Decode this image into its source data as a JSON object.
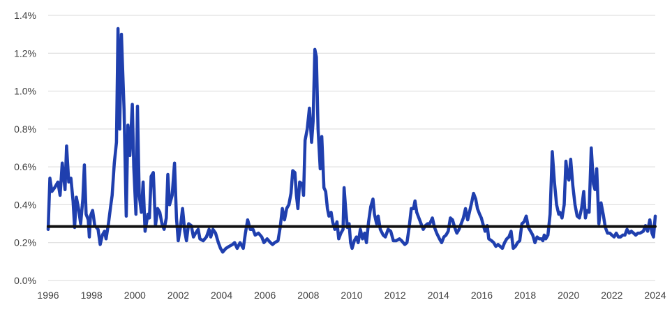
{
  "chart_data": {
    "type": "line",
    "title": "",
    "xlabel": "",
    "ylabel": "",
    "xlim": [
      1996,
      2024
    ],
    "ylim": [
      0,
      1.4
    ],
    "grid": true,
    "legend": "none",
    "x_ticks": [
      {
        "value": 1996,
        "label": "1996"
      },
      {
        "value": 1998,
        "label": "1998"
      },
      {
        "value": 2000,
        "label": "2000"
      },
      {
        "value": 2002,
        "label": "2002"
      },
      {
        "value": 2004,
        "label": "2004"
      },
      {
        "value": 2006,
        "label": "2006"
      },
      {
        "value": 2008,
        "label": "2008"
      },
      {
        "value": 2010,
        "label": "2010"
      },
      {
        "value": 2012,
        "label": "2012"
      },
      {
        "value": 2014,
        "label": "2014"
      },
      {
        "value": 2016,
        "label": "2016"
      },
      {
        "value": 2018,
        "label": "2018"
      },
      {
        "value": 2020,
        "label": "2020"
      },
      {
        "value": 2022,
        "label": "2022"
      },
      {
        "value": 2024,
        "label": "2024"
      }
    ],
    "y_ticks": [
      {
        "value": 0.0,
        "label": "0.0%"
      },
      {
        "value": 0.2,
        "label": "0.2%"
      },
      {
        "value": 0.4,
        "label": "0.4%"
      },
      {
        "value": 0.6,
        "label": "0.6%"
      },
      {
        "value": 0.8,
        "label": "0.8%"
      },
      {
        "value": 1.0,
        "label": "1.0%"
      },
      {
        "value": 1.2,
        "label": "1.2%"
      },
      {
        "value": 1.4,
        "label": "1.4%"
      }
    ],
    "series": [
      {
        "color": "#1f3fae",
        "points": [
          [
            1996.0,
            0.27
          ],
          [
            1996.08,
            0.54
          ],
          [
            1996.17,
            0.47
          ],
          [
            1996.3,
            0.49
          ],
          [
            1996.45,
            0.52
          ],
          [
            1996.55,
            0.45
          ],
          [
            1996.65,
            0.62
          ],
          [
            1996.78,
            0.48
          ],
          [
            1996.85,
            0.71
          ],
          [
            1996.95,
            0.52
          ],
          [
            1997.05,
            0.54
          ],
          [
            1997.15,
            0.42
          ],
          [
            1997.22,
            0.28
          ],
          [
            1997.3,
            0.44
          ],
          [
            1997.4,
            0.38
          ],
          [
            1997.5,
            0.3
          ],
          [
            1997.6,
            0.43
          ],
          [
            1997.67,
            0.61
          ],
          [
            1997.75,
            0.35
          ],
          [
            1997.85,
            0.32
          ],
          [
            1997.9,
            0.23
          ],
          [
            1997.95,
            0.34
          ],
          [
            1998.05,
            0.37
          ],
          [
            1998.15,
            0.29
          ],
          [
            1998.3,
            0.27
          ],
          [
            1998.4,
            0.19
          ],
          [
            1998.5,
            0.24
          ],
          [
            1998.6,
            0.26
          ],
          [
            1998.67,
            0.22
          ],
          [
            1998.78,
            0.3
          ],
          [
            1998.88,
            0.39
          ],
          [
            1998.95,
            0.45
          ],
          [
            1999.05,
            0.62
          ],
          [
            1999.15,
            0.73
          ],
          [
            1999.22,
            1.33
          ],
          [
            1999.3,
            0.8
          ],
          [
            1999.38,
            1.3
          ],
          [
            1999.5,
            0.9
          ],
          [
            1999.6,
            0.34
          ],
          [
            1999.68,
            0.82
          ],
          [
            1999.77,
            0.66
          ],
          [
            1999.88,
            0.93
          ],
          [
            1999.95,
            0.6
          ],
          [
            2000.05,
            0.35
          ],
          [
            2000.12,
            0.92
          ],
          [
            2000.2,
            0.45
          ],
          [
            2000.3,
            0.36
          ],
          [
            2000.38,
            0.52
          ],
          [
            2000.47,
            0.26
          ],
          [
            2000.6,
            0.35
          ],
          [
            2000.67,
            0.33
          ],
          [
            2000.75,
            0.55
          ],
          [
            2000.85,
            0.57
          ],
          [
            2000.95,
            0.29
          ],
          [
            2001.05,
            0.38
          ],
          [
            2001.15,
            0.36
          ],
          [
            2001.25,
            0.3
          ],
          [
            2001.35,
            0.27
          ],
          [
            2001.45,
            0.33
          ],
          [
            2001.52,
            0.56
          ],
          [
            2001.6,
            0.4
          ],
          [
            2001.72,
            0.45
          ],
          [
            2001.83,
            0.62
          ],
          [
            2001.92,
            0.33
          ],
          [
            2002.0,
            0.21
          ],
          [
            2002.1,
            0.28
          ],
          [
            2002.2,
            0.38
          ],
          [
            2002.3,
            0.26
          ],
          [
            2002.38,
            0.21
          ],
          [
            2002.48,
            0.3
          ],
          [
            2002.6,
            0.29
          ],
          [
            2002.7,
            0.23
          ],
          [
            2002.8,
            0.25
          ],
          [
            2002.92,
            0.27
          ],
          [
            2003.0,
            0.22
          ],
          [
            2003.15,
            0.21
          ],
          [
            2003.3,
            0.23
          ],
          [
            2003.42,
            0.27
          ],
          [
            2003.5,
            0.23
          ],
          [
            2003.6,
            0.27
          ],
          [
            2003.72,
            0.25
          ],
          [
            2003.85,
            0.2
          ],
          [
            2003.95,
            0.17
          ],
          [
            2004.05,
            0.15
          ],
          [
            2004.2,
            0.17
          ],
          [
            2004.35,
            0.18
          ],
          [
            2004.5,
            0.19
          ],
          [
            2004.6,
            0.2
          ],
          [
            2004.72,
            0.17
          ],
          [
            2004.85,
            0.2
          ],
          [
            2005.0,
            0.17
          ],
          [
            2005.1,
            0.25
          ],
          [
            2005.2,
            0.32
          ],
          [
            2005.32,
            0.27
          ],
          [
            2005.45,
            0.27
          ],
          [
            2005.55,
            0.24
          ],
          [
            2005.7,
            0.25
          ],
          [
            2005.85,
            0.23
          ],
          [
            2005.95,
            0.2
          ],
          [
            2006.1,
            0.22
          ],
          [
            2006.25,
            0.2
          ],
          [
            2006.35,
            0.19
          ],
          [
            2006.45,
            0.2
          ],
          [
            2006.6,
            0.21
          ],
          [
            2006.7,
            0.28
          ],
          [
            2006.8,
            0.38
          ],
          [
            2006.9,
            0.32
          ],
          [
            2007.0,
            0.38
          ],
          [
            2007.1,
            0.4
          ],
          [
            2007.2,
            0.46
          ],
          [
            2007.28,
            0.58
          ],
          [
            2007.38,
            0.57
          ],
          [
            2007.45,
            0.45
          ],
          [
            2007.52,
            0.38
          ],
          [
            2007.6,
            0.52
          ],
          [
            2007.72,
            0.51
          ],
          [
            2007.78,
            0.45
          ],
          [
            2007.85,
            0.74
          ],
          [
            2007.95,
            0.8
          ],
          [
            2008.05,
            0.91
          ],
          [
            2008.15,
            0.73
          ],
          [
            2008.22,
            0.84
          ],
          [
            2008.3,
            1.22
          ],
          [
            2008.37,
            1.18
          ],
          [
            2008.45,
            0.8
          ],
          [
            2008.55,
            0.59
          ],
          [
            2008.62,
            0.76
          ],
          [
            2008.72,
            0.49
          ],
          [
            2008.8,
            0.47
          ],
          [
            2008.88,
            0.38
          ],
          [
            2008.95,
            0.34
          ],
          [
            2009.05,
            0.36
          ],
          [
            2009.12,
            0.31
          ],
          [
            2009.22,
            0.27
          ],
          [
            2009.32,
            0.31
          ],
          [
            2009.4,
            0.22
          ],
          [
            2009.5,
            0.25
          ],
          [
            2009.6,
            0.27
          ],
          [
            2009.65,
            0.49
          ],
          [
            2009.72,
            0.38
          ],
          [
            2009.8,
            0.28
          ],
          [
            2009.88,
            0.3
          ],
          [
            2009.95,
            0.2
          ],
          [
            2010.02,
            0.17
          ],
          [
            2010.12,
            0.21
          ],
          [
            2010.22,
            0.23
          ],
          [
            2010.3,
            0.2
          ],
          [
            2010.4,
            0.27
          ],
          [
            2010.5,
            0.22
          ],
          [
            2010.6,
            0.25
          ],
          [
            2010.68,
            0.2
          ],
          [
            2010.78,
            0.31
          ],
          [
            2010.88,
            0.39
          ],
          [
            2010.98,
            0.43
          ],
          [
            2011.05,
            0.35
          ],
          [
            2011.15,
            0.3
          ],
          [
            2011.22,
            0.34
          ],
          [
            2011.32,
            0.27
          ],
          [
            2011.45,
            0.24
          ],
          [
            2011.55,
            0.23
          ],
          [
            2011.68,
            0.27
          ],
          [
            2011.8,
            0.26
          ],
          [
            2011.92,
            0.21
          ],
          [
            2012.05,
            0.21
          ],
          [
            2012.2,
            0.22
          ],
          [
            2012.3,
            0.21
          ],
          [
            2012.45,
            0.19
          ],
          [
            2012.55,
            0.2
          ],
          [
            2012.65,
            0.28
          ],
          [
            2012.75,
            0.38
          ],
          [
            2012.85,
            0.38
          ],
          [
            2012.92,
            0.42
          ],
          [
            2013.0,
            0.36
          ],
          [
            2013.1,
            0.33
          ],
          [
            2013.2,
            0.3
          ],
          [
            2013.3,
            0.27
          ],
          [
            2013.4,
            0.29
          ],
          [
            2013.5,
            0.3
          ],
          [
            2013.6,
            0.3
          ],
          [
            2013.72,
            0.33
          ],
          [
            2013.82,
            0.28
          ],
          [
            2013.92,
            0.25
          ],
          [
            2014.05,
            0.22
          ],
          [
            2014.15,
            0.2
          ],
          [
            2014.25,
            0.23
          ],
          [
            2014.35,
            0.24
          ],
          [
            2014.45,
            0.26
          ],
          [
            2014.55,
            0.33
          ],
          [
            2014.65,
            0.32
          ],
          [
            2014.75,
            0.28
          ],
          [
            2014.85,
            0.25
          ],
          [
            2014.95,
            0.27
          ],
          [
            2015.05,
            0.3
          ],
          [
            2015.15,
            0.33
          ],
          [
            2015.25,
            0.38
          ],
          [
            2015.35,
            0.32
          ],
          [
            2015.45,
            0.37
          ],
          [
            2015.55,
            0.42
          ],
          [
            2015.62,
            0.46
          ],
          [
            2015.72,
            0.43
          ],
          [
            2015.8,
            0.38
          ],
          [
            2015.9,
            0.35
          ],
          [
            2015.98,
            0.33
          ],
          [
            2016.05,
            0.3
          ],
          [
            2016.15,
            0.26
          ],
          [
            2016.25,
            0.29
          ],
          [
            2016.32,
            0.22
          ],
          [
            2016.45,
            0.21
          ],
          [
            2016.55,
            0.2
          ],
          [
            2016.65,
            0.18
          ],
          [
            2016.75,
            0.19
          ],
          [
            2016.85,
            0.18
          ],
          [
            2016.95,
            0.17
          ],
          [
            2017.05,
            0.2
          ],
          [
            2017.15,
            0.22
          ],
          [
            2017.25,
            0.23
          ],
          [
            2017.35,
            0.26
          ],
          [
            2017.45,
            0.17
          ],
          [
            2017.55,
            0.18
          ],
          [
            2017.65,
            0.2
          ],
          [
            2017.75,
            0.21
          ],
          [
            2017.85,
            0.3
          ],
          [
            2017.95,
            0.31
          ],
          [
            2018.05,
            0.34
          ],
          [
            2018.15,
            0.28
          ],
          [
            2018.25,
            0.26
          ],
          [
            2018.35,
            0.24
          ],
          [
            2018.45,
            0.2
          ],
          [
            2018.55,
            0.23
          ],
          [
            2018.65,
            0.22
          ],
          [
            2018.75,
            0.22
          ],
          [
            2018.82,
            0.21
          ],
          [
            2018.88,
            0.24
          ],
          [
            2018.95,
            0.22
          ],
          [
            2019.05,
            0.24
          ],
          [
            2019.15,
            0.35
          ],
          [
            2019.25,
            0.68
          ],
          [
            2019.35,
            0.52
          ],
          [
            2019.45,
            0.4
          ],
          [
            2019.55,
            0.35
          ],
          [
            2019.6,
            0.36
          ],
          [
            2019.7,
            0.33
          ],
          [
            2019.8,
            0.4
          ],
          [
            2019.88,
            0.63
          ],
          [
            2019.95,
            0.55
          ],
          [
            2020.02,
            0.53
          ],
          [
            2020.1,
            0.64
          ],
          [
            2020.2,
            0.5
          ],
          [
            2020.3,
            0.4
          ],
          [
            2020.4,
            0.34
          ],
          [
            2020.5,
            0.33
          ],
          [
            2020.6,
            0.38
          ],
          [
            2020.7,
            0.47
          ],
          [
            2020.78,
            0.33
          ],
          [
            2020.85,
            0.37
          ],
          [
            2020.95,
            0.36
          ],
          [
            2021.05,
            0.7
          ],
          [
            2021.15,
            0.51
          ],
          [
            2021.22,
            0.48
          ],
          [
            2021.3,
            0.59
          ],
          [
            2021.4,
            0.3
          ],
          [
            2021.5,
            0.41
          ],
          [
            2021.6,
            0.35
          ],
          [
            2021.7,
            0.28
          ],
          [
            2021.8,
            0.25
          ],
          [
            2021.9,
            0.25
          ],
          [
            2022.0,
            0.24
          ],
          [
            2022.1,
            0.23
          ],
          [
            2022.2,
            0.25
          ],
          [
            2022.3,
            0.23
          ],
          [
            2022.4,
            0.23
          ],
          [
            2022.5,
            0.24
          ],
          [
            2022.6,
            0.24
          ],
          [
            2022.7,
            0.27
          ],
          [
            2022.8,
            0.25
          ],
          [
            2022.9,
            0.26
          ],
          [
            2023.0,
            0.25
          ],
          [
            2023.1,
            0.24
          ],
          [
            2023.2,
            0.25
          ],
          [
            2023.3,
            0.25
          ],
          [
            2023.45,
            0.26
          ],
          [
            2023.55,
            0.29
          ],
          [
            2023.65,
            0.26
          ],
          [
            2023.75,
            0.32
          ],
          [
            2023.85,
            0.25
          ],
          [
            2023.92,
            0.23
          ],
          [
            2024.0,
            0.34
          ]
        ]
      },
      {
        "color": "#111111",
        "points": [
          [
            1996.0,
            0.285
          ],
          [
            2024.0,
            0.285
          ]
        ]
      }
    ]
  }
}
